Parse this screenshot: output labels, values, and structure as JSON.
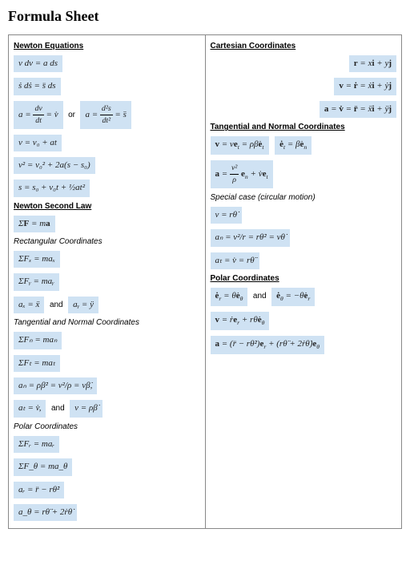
{
  "title": "Formula Sheet",
  "left": {
    "sec1_title": "Newton Equations",
    "eq1": "v dv = a ds",
    "eq2": "ṡ dṡ = s̈ ds",
    "eq3a": "a = ",
    "eq3b": " = v̇",
    "or": "or",
    "eq3c": "a = ",
    "eq3d": " = s̈",
    "eq4": "v = v₀ + at",
    "eq5": "v² = v₀² + 2a(s − s₀)",
    "eq6": "s = s₀ + v₀t + ½at²",
    "sec2_title": "Newton Second Law",
    "eq7": "ΣF = ma",
    "sub_rect": "Rectangular Coordinates",
    "eq8": "ΣFₓ = maₓ",
    "eq9": "ΣFᵧ = maᵧ",
    "eq10a": "aₓ = ẍ",
    "and": "and",
    "eq10b": "aᵧ = ÿ",
    "sub_tang": "Tangential and Normal Coordinates",
    "eq11": "ΣFₙ = maₙ",
    "eq12": "ΣFₜ = maₜ",
    "eq13": "aₙ = ρβ̇² = v²/ρ = vβ̇,",
    "eq14a": "aₜ = v̇,",
    "eq14b": "v = ρβ̇",
    "sub_polar": "Polar Coordinates",
    "eq15": "ΣFᵣ = maᵣ",
    "eq16": "ΣF_θ = ma_θ",
    "eq17": "aᵣ = r̈ − rθ̇²",
    "eq18": "a_θ = rθ̈ + 2ṙθ̇"
  },
  "right": {
    "sec1_title": "Cartesian Coordinates",
    "eq1": "r = xi + yj",
    "eq2": "v = ṙ = ẋi + ẏj",
    "eq3": "a = v̇ = r̈ = ẍi + ÿj",
    "sec2_title": "Tangential and Normal Coordinates",
    "eq4": "v = veₜ = ρβ̇eₜ",
    "eq5": "ėₜ = β̇eₙ",
    "eq6a": "a = ",
    "eq6b": " eₙ + v̇eₜ",
    "sub_spec": "Special case (circular motion)",
    "eq7": "v = rθ̇",
    "eq8": "aₙ = v²/r = rθ̇² = vθ̇",
    "eq9": "aₜ = v̇ = rθ̈",
    "sec3_title": "Polar Coordinates",
    "eq10a": "ėᵣ = θ̇e_θ",
    "and": "and",
    "eq10b": "ė_θ = −θ̇eᵣ",
    "eq11": "v = ṙeᵣ + rθ̇e_θ",
    "eq12": "a = (r̈ − rθ̇²)eᵣ + (rθ̈ + 2ṙθ̇)e_θ"
  },
  "colors": {
    "highlight": "#cfe2f3",
    "border": "#888888",
    "text": "#000000",
    "background": "#ffffff"
  }
}
